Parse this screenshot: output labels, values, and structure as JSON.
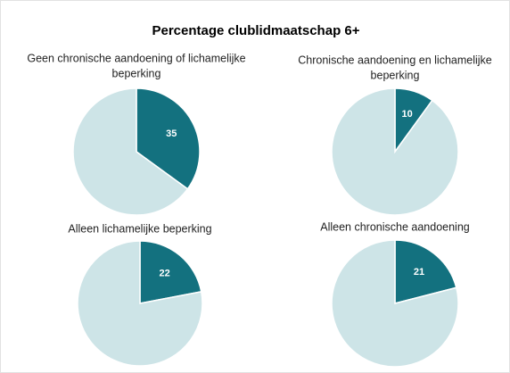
{
  "title": "Percentage clublidmaatschap 6+",
  "chart_data": [
    {
      "type": "pie",
      "title": [
        "Geen chronische aandoening of lichamelijke",
        "beperking"
      ],
      "values": [
        35,
        65
      ],
      "value_labels": [
        "35",
        null
      ],
      "colors": [
        "#13717f",
        "#cde4e7"
      ]
    },
    {
      "type": "pie",
      "title": [
        "Chronische aandoening en lichamelijke",
        "beperking"
      ],
      "values": [
        10,
        90
      ],
      "value_labels": [
        "10",
        null
      ],
      "colors": [
        "#13717f",
        "#cde4e7"
      ]
    },
    {
      "type": "pie",
      "title": [
        "Alleen lichamelijke beperking"
      ],
      "values": [
        22,
        78
      ],
      "value_labels": [
        "22",
        null
      ],
      "colors": [
        "#13717f",
        "#cde4e7"
      ]
    },
    {
      "type": "pie",
      "title": [
        "Alleen chronische aandoening"
      ],
      "values": [
        21,
        79
      ],
      "value_labels": [
        "21",
        null
      ],
      "colors": [
        "#13717f",
        "#cde4e7"
      ]
    }
  ]
}
